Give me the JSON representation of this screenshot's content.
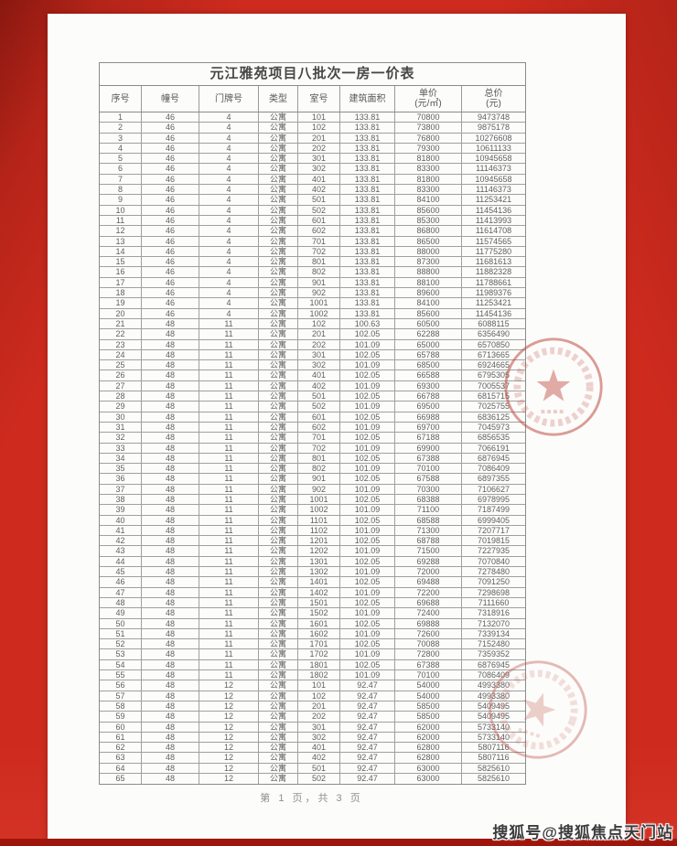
{
  "document": {
    "title": "元江雅苑项目八批次一房一价表",
    "footer_page_indicator": "第 1 页，共 3 页",
    "watermark": "搜狐号@搜狐焦点天门站"
  },
  "table": {
    "columns": [
      {
        "label": "序号",
        "sub": ""
      },
      {
        "label": "幢号",
        "sub": ""
      },
      {
        "label": "门牌号",
        "sub": ""
      },
      {
        "label": "类型",
        "sub": ""
      },
      {
        "label": "室号",
        "sub": ""
      },
      {
        "label": "建筑面积",
        "sub": ""
      },
      {
        "label": "单价",
        "sub": "(元/㎡)"
      },
      {
        "label": "总价",
        "sub": "(元)"
      }
    ],
    "rows": [
      [
        "1",
        "46",
        "4",
        "公寓",
        "101",
        "133.81",
        "70800",
        "9473748"
      ],
      [
        "2",
        "46",
        "4",
        "公寓",
        "102",
        "133.81",
        "73800",
        "9875178"
      ],
      [
        "3",
        "46",
        "4",
        "公寓",
        "201",
        "133.81",
        "76800",
        "10276608"
      ],
      [
        "4",
        "46",
        "4",
        "公寓",
        "202",
        "133.81",
        "79300",
        "10611133"
      ],
      [
        "5",
        "46",
        "4",
        "公寓",
        "301",
        "133.81",
        "81800",
        "10945658"
      ],
      [
        "6",
        "46",
        "4",
        "公寓",
        "302",
        "133.81",
        "83300",
        "11146373"
      ],
      [
        "7",
        "46",
        "4",
        "公寓",
        "401",
        "133.81",
        "81800",
        "10945658"
      ],
      [
        "8",
        "46",
        "4",
        "公寓",
        "402",
        "133.81",
        "83300",
        "11146373"
      ],
      [
        "9",
        "46",
        "4",
        "公寓",
        "501",
        "133.81",
        "84100",
        "11253421"
      ],
      [
        "10",
        "46",
        "4",
        "公寓",
        "502",
        "133.81",
        "85600",
        "11454136"
      ],
      [
        "11",
        "46",
        "4",
        "公寓",
        "601",
        "133.81",
        "85300",
        "11413993"
      ],
      [
        "12",
        "46",
        "4",
        "公寓",
        "602",
        "133.81",
        "86800",
        "11614708"
      ],
      [
        "13",
        "46",
        "4",
        "公寓",
        "701",
        "133.81",
        "86500",
        "11574565"
      ],
      [
        "14",
        "46",
        "4",
        "公寓",
        "702",
        "133.81",
        "88000",
        "11775280"
      ],
      [
        "15",
        "46",
        "4",
        "公寓",
        "801",
        "133.81",
        "87300",
        "11681613"
      ],
      [
        "16",
        "46",
        "4",
        "公寓",
        "802",
        "133.81",
        "88800",
        "11882328"
      ],
      [
        "17",
        "46",
        "4",
        "公寓",
        "901",
        "133.81",
        "88100",
        "11788661"
      ],
      [
        "18",
        "46",
        "4",
        "公寓",
        "902",
        "133.81",
        "89600",
        "11989376"
      ],
      [
        "19",
        "46",
        "4",
        "公寓",
        "1001",
        "133.81",
        "84100",
        "11253421"
      ],
      [
        "20",
        "46",
        "4",
        "公寓",
        "1002",
        "133.81",
        "85600",
        "11454136"
      ],
      [
        "21",
        "48",
        "11",
        "公寓",
        "102",
        "100.63",
        "60500",
        "6088115"
      ],
      [
        "22",
        "48",
        "11",
        "公寓",
        "201",
        "102.05",
        "62288",
        "6356490"
      ],
      [
        "23",
        "48",
        "11",
        "公寓",
        "202",
        "101.09",
        "65000",
        "6570850"
      ],
      [
        "24",
        "48",
        "11",
        "公寓",
        "301",
        "102.05",
        "65788",
        "6713665"
      ],
      [
        "25",
        "48",
        "11",
        "公寓",
        "302",
        "101.09",
        "68500",
        "6924665"
      ],
      [
        "26",
        "48",
        "11",
        "公寓",
        "401",
        "102.05",
        "66588",
        "6795305"
      ],
      [
        "27",
        "48",
        "11",
        "公寓",
        "402",
        "101.09",
        "69300",
        "7005537"
      ],
      [
        "28",
        "48",
        "11",
        "公寓",
        "501",
        "102.05",
        "66788",
        "6815715"
      ],
      [
        "29",
        "48",
        "11",
        "公寓",
        "502",
        "101.09",
        "69500",
        "7025755"
      ],
      [
        "30",
        "48",
        "11",
        "公寓",
        "601",
        "102.05",
        "66988",
        "6836125"
      ],
      [
        "31",
        "48",
        "11",
        "公寓",
        "602",
        "101.09",
        "69700",
        "7045973"
      ],
      [
        "32",
        "48",
        "11",
        "公寓",
        "701",
        "102.05",
        "67188",
        "6856535"
      ],
      [
        "33",
        "48",
        "11",
        "公寓",
        "702",
        "101.09",
        "69900",
        "7066191"
      ],
      [
        "34",
        "48",
        "11",
        "公寓",
        "801",
        "102.05",
        "67388",
        "6876945"
      ],
      [
        "35",
        "48",
        "11",
        "公寓",
        "802",
        "101.09",
        "70100",
        "7086409"
      ],
      [
        "36",
        "48",
        "11",
        "公寓",
        "901",
        "102.05",
        "67588",
        "6897355"
      ],
      [
        "37",
        "48",
        "11",
        "公寓",
        "902",
        "101.09",
        "70300",
        "7106627"
      ],
      [
        "38",
        "48",
        "11",
        "公寓",
        "1001",
        "102.05",
        "68388",
        "6978995"
      ],
      [
        "39",
        "48",
        "11",
        "公寓",
        "1002",
        "101.09",
        "71100",
        "7187499"
      ],
      [
        "40",
        "48",
        "11",
        "公寓",
        "1101",
        "102.05",
        "68588",
        "6999405"
      ],
      [
        "41",
        "48",
        "11",
        "公寓",
        "1102",
        "101.09",
        "71300",
        "7207717"
      ],
      [
        "42",
        "48",
        "11",
        "公寓",
        "1201",
        "102.05",
        "68788",
        "7019815"
      ],
      [
        "43",
        "48",
        "11",
        "公寓",
        "1202",
        "101.09",
        "71500",
        "7227935"
      ],
      [
        "44",
        "48",
        "11",
        "公寓",
        "1301",
        "102.05",
        "69288",
        "7070840"
      ],
      [
        "45",
        "48",
        "11",
        "公寓",
        "1302",
        "101.09",
        "72000",
        "7278480"
      ],
      [
        "46",
        "48",
        "11",
        "公寓",
        "1401",
        "102.05",
        "69488",
        "7091250"
      ],
      [
        "47",
        "48",
        "11",
        "公寓",
        "1402",
        "101.09",
        "72200",
        "7298698"
      ],
      [
        "48",
        "48",
        "11",
        "公寓",
        "1501",
        "102.05",
        "69688",
        "7111660"
      ],
      [
        "49",
        "48",
        "11",
        "公寓",
        "1502",
        "101.09",
        "72400",
        "7318916"
      ],
      [
        "50",
        "48",
        "11",
        "公寓",
        "1601",
        "102.05",
        "69888",
        "7132070"
      ],
      [
        "51",
        "48",
        "11",
        "公寓",
        "1602",
        "101.09",
        "72600",
        "7339134"
      ],
      [
        "52",
        "48",
        "11",
        "公寓",
        "1701",
        "102.05",
        "70088",
        "7152480"
      ],
      [
        "53",
        "48",
        "11",
        "公寓",
        "1702",
        "101.09",
        "72800",
        "7359352"
      ],
      [
        "54",
        "48",
        "11",
        "公寓",
        "1801",
        "102.05",
        "67388",
        "6876945"
      ],
      [
        "55",
        "48",
        "11",
        "公寓",
        "1802",
        "101.09",
        "70100",
        "7086409"
      ],
      [
        "56",
        "48",
        "12",
        "公寓",
        "101",
        "92.47",
        "54000",
        "4993380"
      ],
      [
        "57",
        "48",
        "12",
        "公寓",
        "102",
        "92.47",
        "54000",
        "4993380"
      ],
      [
        "58",
        "48",
        "12",
        "公寓",
        "201",
        "92.47",
        "58500",
        "5409495"
      ],
      [
        "59",
        "48",
        "12",
        "公寓",
        "202",
        "92.47",
        "58500",
        "5409495"
      ],
      [
        "60",
        "48",
        "12",
        "公寓",
        "301",
        "92.47",
        "62000",
        "5733140"
      ],
      [
        "61",
        "48",
        "12",
        "公寓",
        "302",
        "92.47",
        "62000",
        "5733140"
      ],
      [
        "62",
        "48",
        "12",
        "公寓",
        "401",
        "92.47",
        "62800",
        "5807116"
      ],
      [
        "63",
        "48",
        "12",
        "公寓",
        "402",
        "92.47",
        "62800",
        "5807116"
      ],
      [
        "64",
        "48",
        "12",
        "公寓",
        "501",
        "92.47",
        "63000",
        "5825610"
      ],
      [
        "65",
        "48",
        "12",
        "公寓",
        "502",
        "92.47",
        "63000",
        "5825610"
      ]
    ]
  },
  "stamps": [
    {
      "name": "official-seal-stamp-upper",
      "description": "faint red circular seal with five-point star"
    },
    {
      "name": "official-seal-stamp-lower",
      "description": "faint red circular seal with five-point star"
    }
  ],
  "colors": {
    "background_red": "#ce2b1e",
    "bottom_strip_red": "#9e150c",
    "paper": "#fcfcfb",
    "table_border": "#9b9b9b",
    "stamp_red": "#c14e42",
    "watermark_text": "#3b3b3b"
  }
}
